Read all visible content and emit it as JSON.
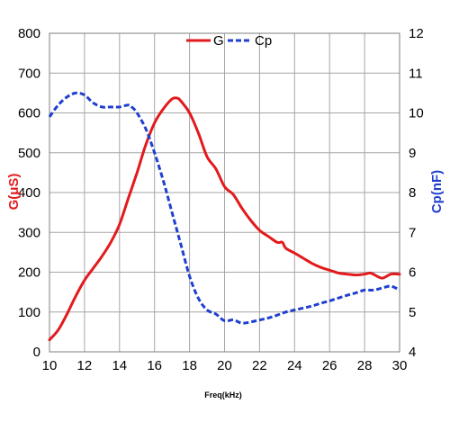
{
  "chart_data": {
    "type": "line",
    "xlabel": "Freq(kHz)",
    "ylabel_left": "G(μS)",
    "ylabel_right": "Cp(nF)",
    "xlim": [
      10,
      30
    ],
    "xticks": [
      10,
      12,
      14,
      16,
      18,
      20,
      22,
      24,
      26,
      28,
      30
    ],
    "ylim_left": [
      0,
      800
    ],
    "yticks_left": [
      0,
      100,
      200,
      300,
      400,
      500,
      600,
      700,
      800
    ],
    "ylim_right": [
      4,
      12
    ],
    "yticks_right": [
      4,
      5,
      6,
      7,
      8,
      9,
      10,
      11,
      12
    ],
    "grid": true,
    "legend": "top-center",
    "series": [
      {
        "name": "G",
        "axis": "left",
        "color": "#e31a1c",
        "style": "solid",
        "x": [
          10,
          10.5,
          11,
          11.5,
          12,
          12.5,
          13,
          13.5,
          14,
          14.5,
          15,
          15.5,
          16,
          16.5,
          17,
          17.3,
          17.5,
          18,
          18.5,
          19,
          19.5,
          20,
          20.5,
          21,
          21.5,
          22,
          22.5,
          23,
          23.3,
          23.5,
          24,
          24.5,
          25,
          25.5,
          26,
          26.5,
          27,
          27.5,
          28,
          28.3,
          28.5,
          29,
          29.5,
          30
        ],
        "y": [
          30,
          55,
          95,
          140,
          180,
          210,
          240,
          275,
          320,
          385,
          450,
          520,
          575,
          610,
          635,
          637,
          630,
          600,
          550,
          490,
          460,
          415,
          395,
          360,
          330,
          305,
          290,
          275,
          275,
          260,
          248,
          235,
          222,
          212,
          205,
          198,
          195,
          193,
          195,
          198,
          195,
          185,
          195,
          195
        ]
      },
      {
        "name": "Cp",
        "axis": "right",
        "color": "#1f3fcf",
        "style": "dashed",
        "x": [
          10,
          10.5,
          11,
          11.5,
          12,
          12.5,
          13,
          13.5,
          14,
          14.5,
          14.7,
          15,
          15.5,
          16,
          16.5,
          17,
          17.5,
          18,
          18.5,
          19,
          19.5,
          20,
          20.5,
          21,
          21.5,
          22,
          22.5,
          23,
          23.5,
          24,
          24.5,
          25,
          25.5,
          26,
          26.5,
          27,
          27.5,
          28,
          28.5,
          29,
          29.5,
          30
        ],
        "y": [
          9.9,
          10.2,
          10.4,
          10.5,
          10.45,
          10.25,
          10.15,
          10.15,
          10.15,
          10.2,
          10.15,
          10.0,
          9.6,
          9.0,
          8.3,
          7.5,
          6.7,
          5.9,
          5.35,
          5.05,
          4.95,
          4.78,
          4.8,
          4.72,
          4.75,
          4.8,
          4.85,
          4.92,
          5.0,
          5.05,
          5.1,
          5.15,
          5.22,
          5.28,
          5.35,
          5.42,
          5.48,
          5.55,
          5.55,
          5.6,
          5.65,
          5.55
        ]
      }
    ]
  }
}
